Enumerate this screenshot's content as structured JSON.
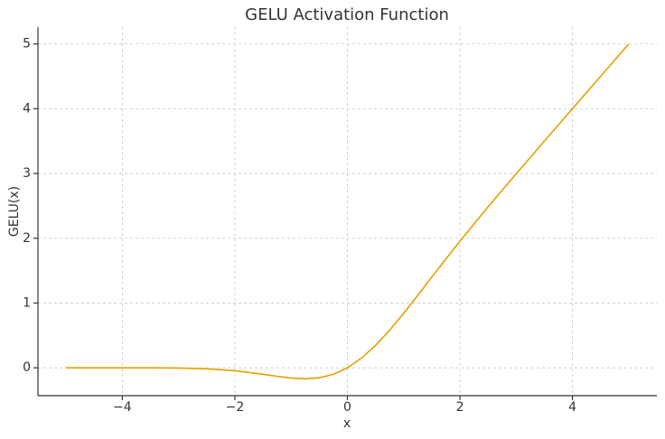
{
  "chart_data": {
    "type": "line",
    "title": "GELU Activation Function",
    "x_label": "x",
    "y_label": "GELU(x)",
    "x": [
      -5,
      -4.5,
      -4,
      -3.5,
      -3,
      -2.5,
      -2,
      -1.5,
      -1.25,
      -1,
      -0.75,
      -0.5,
      -0.25,
      0,
      0.25,
      0.5,
      0.75,
      1,
      1.25,
      1.5,
      1.75,
      2,
      2.5,
      3,
      3.5,
      4,
      4.5,
      5
    ],
    "values": [
      0,
      0,
      -0.0001,
      -0.0008,
      -0.004,
      -0.0155,
      -0.0455,
      -0.1002,
      -0.132,
      -0.1587,
      -0.17,
      -0.1543,
      -0.1003,
      0,
      0.1497,
      0.3457,
      0.58,
      0.8413,
      1.118,
      1.3998,
      1.68,
      1.9545,
      2.4845,
      2.996,
      3.4992,
      3.9999,
      4.5,
      5
    ],
    "color": "#e69f00",
    "xlim": [
      -5.5,
      5.5
    ],
    "ylim": [
      -0.43,
      5.26
    ],
    "xticks": [
      {
        "value": -4,
        "label": "−4"
      },
      {
        "value": -2,
        "label": "−2"
      },
      0,
      2,
      4
    ],
    "yticks": [
      0,
      1,
      2,
      3,
      4,
      5
    ],
    "grid": true
  }
}
